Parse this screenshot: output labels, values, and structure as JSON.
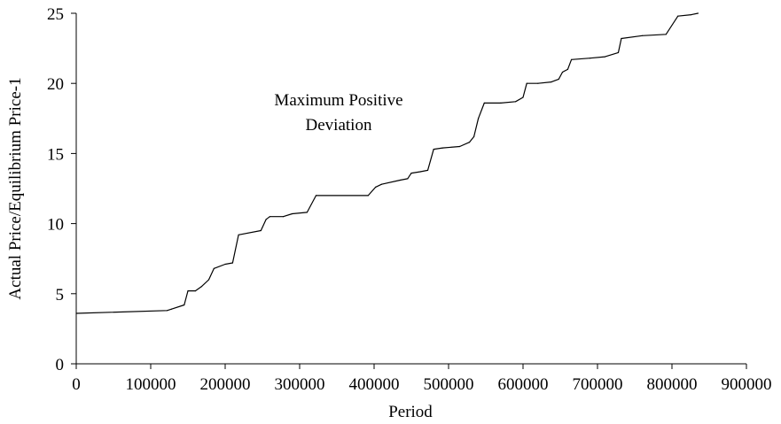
{
  "chart_data": {
    "type": "line",
    "title": "",
    "xlabel": "Period",
    "ylabel": "Actual Price/Equilibrium Price-1",
    "xlim": [
      0,
      900000
    ],
    "ylim": [
      0,
      25
    ],
    "x_ticks": [
      0,
      100000,
      200000,
      300000,
      400000,
      500000,
      600000,
      700000,
      800000,
      900000
    ],
    "y_ticks": [
      0,
      5,
      10,
      15,
      20,
      25
    ],
    "grid": false,
    "legend": "none",
    "annotations": [
      {
        "line1": "Maximum Positive",
        "line2": "Deviation"
      }
    ],
    "series": [
      {
        "color": "#000000",
        "points": [
          [
            0,
            3.6
          ],
          [
            122000,
            3.8
          ],
          [
            128000,
            3.9
          ],
          [
            145000,
            4.2
          ],
          [
            150000,
            5.2
          ],
          [
            160000,
            5.2
          ],
          [
            168000,
            5.5
          ],
          [
            178000,
            6.0
          ],
          [
            185000,
            6.8
          ],
          [
            200000,
            7.1
          ],
          [
            210000,
            7.2
          ],
          [
            218000,
            9.2
          ],
          [
            248000,
            9.5
          ],
          [
            255000,
            10.3
          ],
          [
            260000,
            10.5
          ],
          [
            278000,
            10.5
          ],
          [
            290000,
            10.7
          ],
          [
            310000,
            10.8
          ],
          [
            322000,
            12.0
          ],
          [
            392000,
            12.0
          ],
          [
            402000,
            12.6
          ],
          [
            410000,
            12.8
          ],
          [
            435000,
            13.1
          ],
          [
            445000,
            13.2
          ],
          [
            450000,
            13.6
          ],
          [
            462000,
            13.7
          ],
          [
            472000,
            13.8
          ],
          [
            480000,
            15.3
          ],
          [
            492000,
            15.4
          ],
          [
            515000,
            15.5
          ],
          [
            528000,
            15.8
          ],
          [
            534000,
            16.2
          ],
          [
            540000,
            17.5
          ],
          [
            548000,
            18.6
          ],
          [
            570000,
            18.6
          ],
          [
            590000,
            18.7
          ],
          [
            600000,
            19.0
          ],
          [
            605000,
            20.0
          ],
          [
            620000,
            20.0
          ],
          [
            638000,
            20.1
          ],
          [
            648000,
            20.3
          ],
          [
            653000,
            20.8
          ],
          [
            660000,
            21.0
          ],
          [
            665000,
            21.7
          ],
          [
            690000,
            21.8
          ],
          [
            710000,
            21.9
          ],
          [
            728000,
            22.2
          ],
          [
            732000,
            23.2
          ],
          [
            760000,
            23.4
          ],
          [
            792000,
            23.5
          ],
          [
            808000,
            24.8
          ],
          [
            826000,
            24.9
          ],
          [
            835000,
            25.0
          ]
        ]
      }
    ]
  }
}
